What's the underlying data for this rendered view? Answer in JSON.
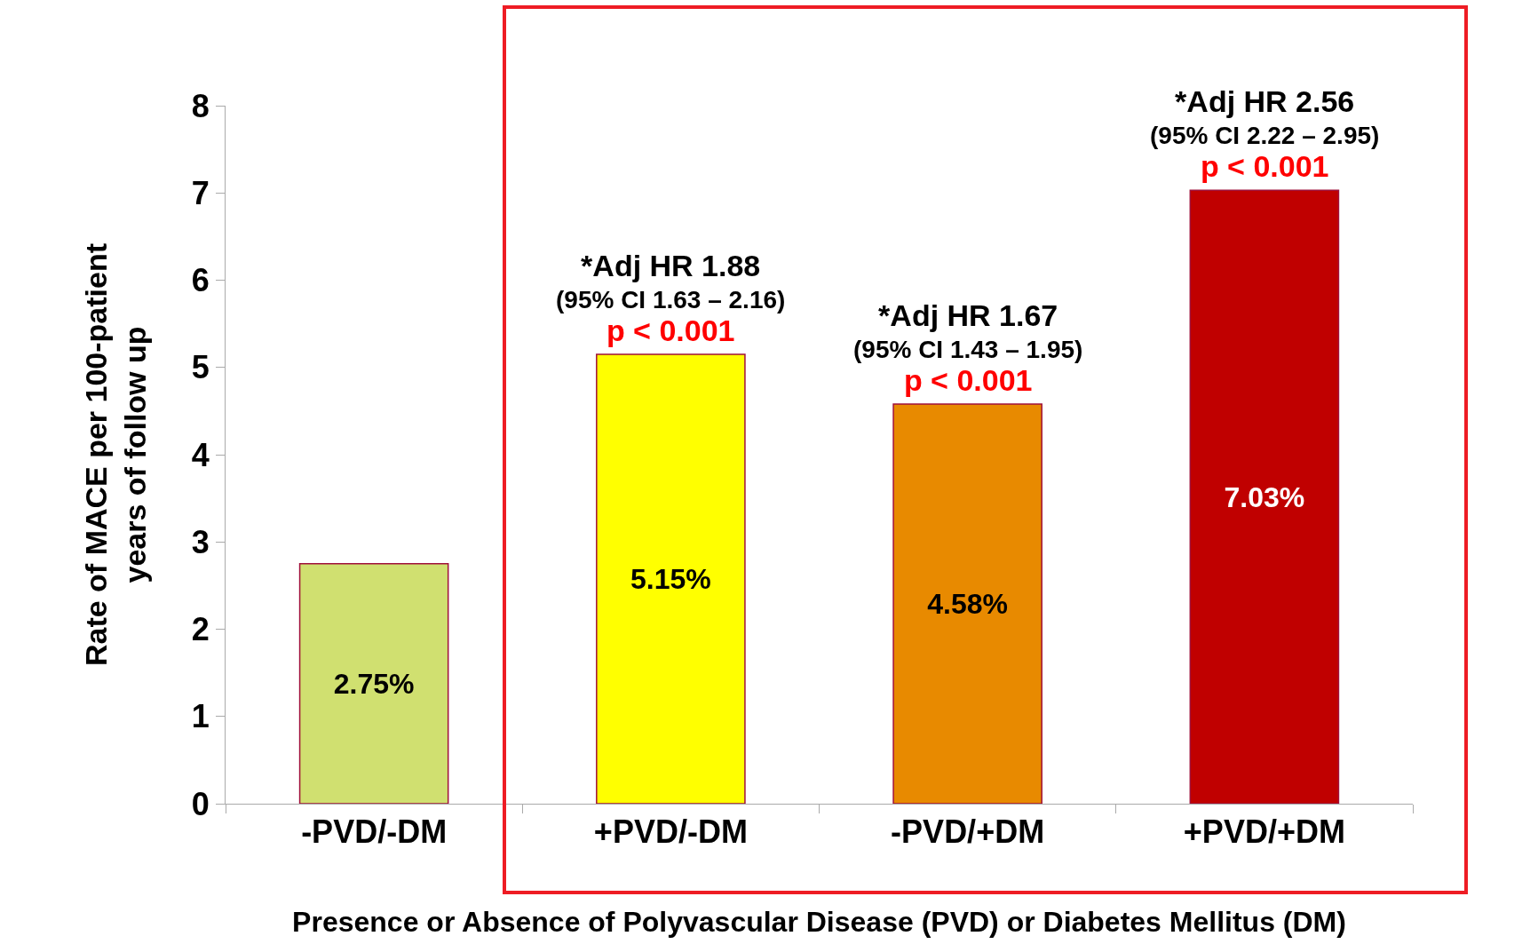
{
  "chart_data": {
    "type": "bar",
    "xlabel": "Presence or Absence of Polyvascular Disease (PVD) or Diabetes Mellitus (DM)",
    "ylabel": "Rate of MACE per 100-patient\nyears of follow up",
    "categories": [
      "-PVD/-DM",
      "+PVD/-DM",
      "-PVD/+DM",
      "+PVD/+DM"
    ],
    "values": [
      2.75,
      5.15,
      4.58,
      7.03
    ],
    "value_labels": [
      "2.75%",
      "5.15%",
      "4.58%",
      "7.03%"
    ],
    "colors": [
      "#d0e070",
      "#ffff00",
      "#e88a00",
      "#c00000"
    ],
    "ylim": [
      0,
      8
    ],
    "yticks": [
      0,
      1,
      2,
      3,
      4,
      5,
      6,
      7,
      8
    ],
    "grid": false,
    "annotations": [
      {
        "text": "*Adj HR 1.88\n(95% CI 1.63 – 2.16)\np < 0.001",
        "x": "+PVD/-DM",
        "y": 5.15
      },
      {
        "text": "*Adj HR 1.67\n(95% CI 1.43 – 1.95)\np < 0.001",
        "x": "-PVD/+DM",
        "y": 4.58
      },
      {
        "text": "*Adj HR 2.56\n(95% CI 2.22 – 2.95)\np < 0.001",
        "x": "+PVD/+DM",
        "y": 7.03
      }
    ]
  }
}
